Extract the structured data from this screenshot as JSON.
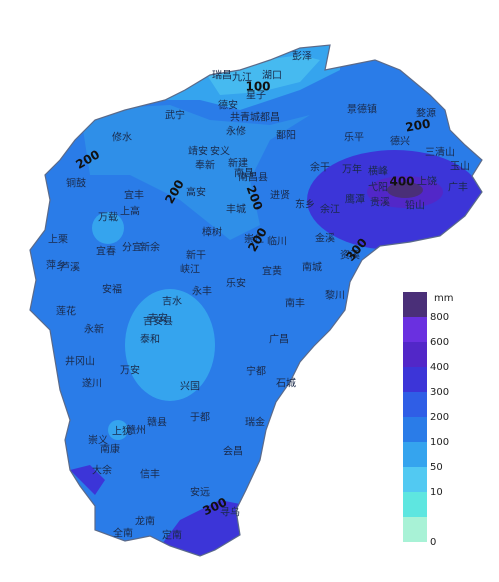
{
  "places": [
    "彭泽",
    "瑞昌",
    "九江",
    "湖口",
    "星子",
    "德安",
    "共青城",
    "都昌",
    "武宁",
    "永修",
    "修水",
    "靖安",
    "安义",
    "奉新",
    "新建",
    "南昌县",
    "南昌",
    "鄱阳",
    "景德镇",
    "乐平",
    "婺源",
    "德兴",
    "玉山",
    "三清山",
    "上饶",
    "广丰",
    "铅山",
    "弋阳",
    "横峰",
    "鹰潭",
    "贵溪",
    "余江",
    "万年",
    "余干",
    "进贤",
    "东乡",
    "铜鼓",
    "宜丰",
    "上高",
    "高安",
    "丰城",
    "万载",
    "宜春",
    "分宜",
    "新余",
    "樟树",
    "新干",
    "峡江",
    "临川",
    "崇仁",
    "金溪",
    "资溪",
    "宜黄",
    "南城",
    "黎川",
    "上栗",
    "萍乡",
    "芦溪",
    "莲花",
    "安福",
    "永新",
    "吉安",
    "吉安县",
    "吉水",
    "永丰",
    "乐安",
    "泰和",
    "井冈山",
    "遂川",
    "万安",
    "兴国",
    "宁都",
    "广昌",
    "南丰",
    "石城",
    "于都",
    "瑞金",
    "会昌",
    "赣县",
    "赣州",
    "上犹",
    "崇义",
    "南康",
    "大余",
    "信丰",
    "安远",
    "龙南",
    "全南",
    "定南",
    "寻乌"
  ],
  "contours": [
    100,
    200,
    200,
    200,
    200,
    200,
    400,
    300,
    300
  ],
  "legend": {
    "unit": "mm",
    "top_color": "#4a2f78",
    "items": [
      {
        "value": 800,
        "color": "#6a30e0"
      },
      {
        "value": 600,
        "color": "#5227c8"
      },
      {
        "value": 400,
        "color": "#3c35d8"
      },
      {
        "value": 300,
        "color": "#2f5ee6"
      },
      {
        "value": 200,
        "color": "#2a7ce8"
      },
      {
        "value": 100,
        "color": "#35a4ee"
      },
      {
        "value": 50,
        "color": "#52c9f2"
      },
      {
        "value": 10,
        "color": "#5ee6e0"
      },
      {
        "value": 0,
        "color": "#a8f2d6"
      }
    ]
  }
}
